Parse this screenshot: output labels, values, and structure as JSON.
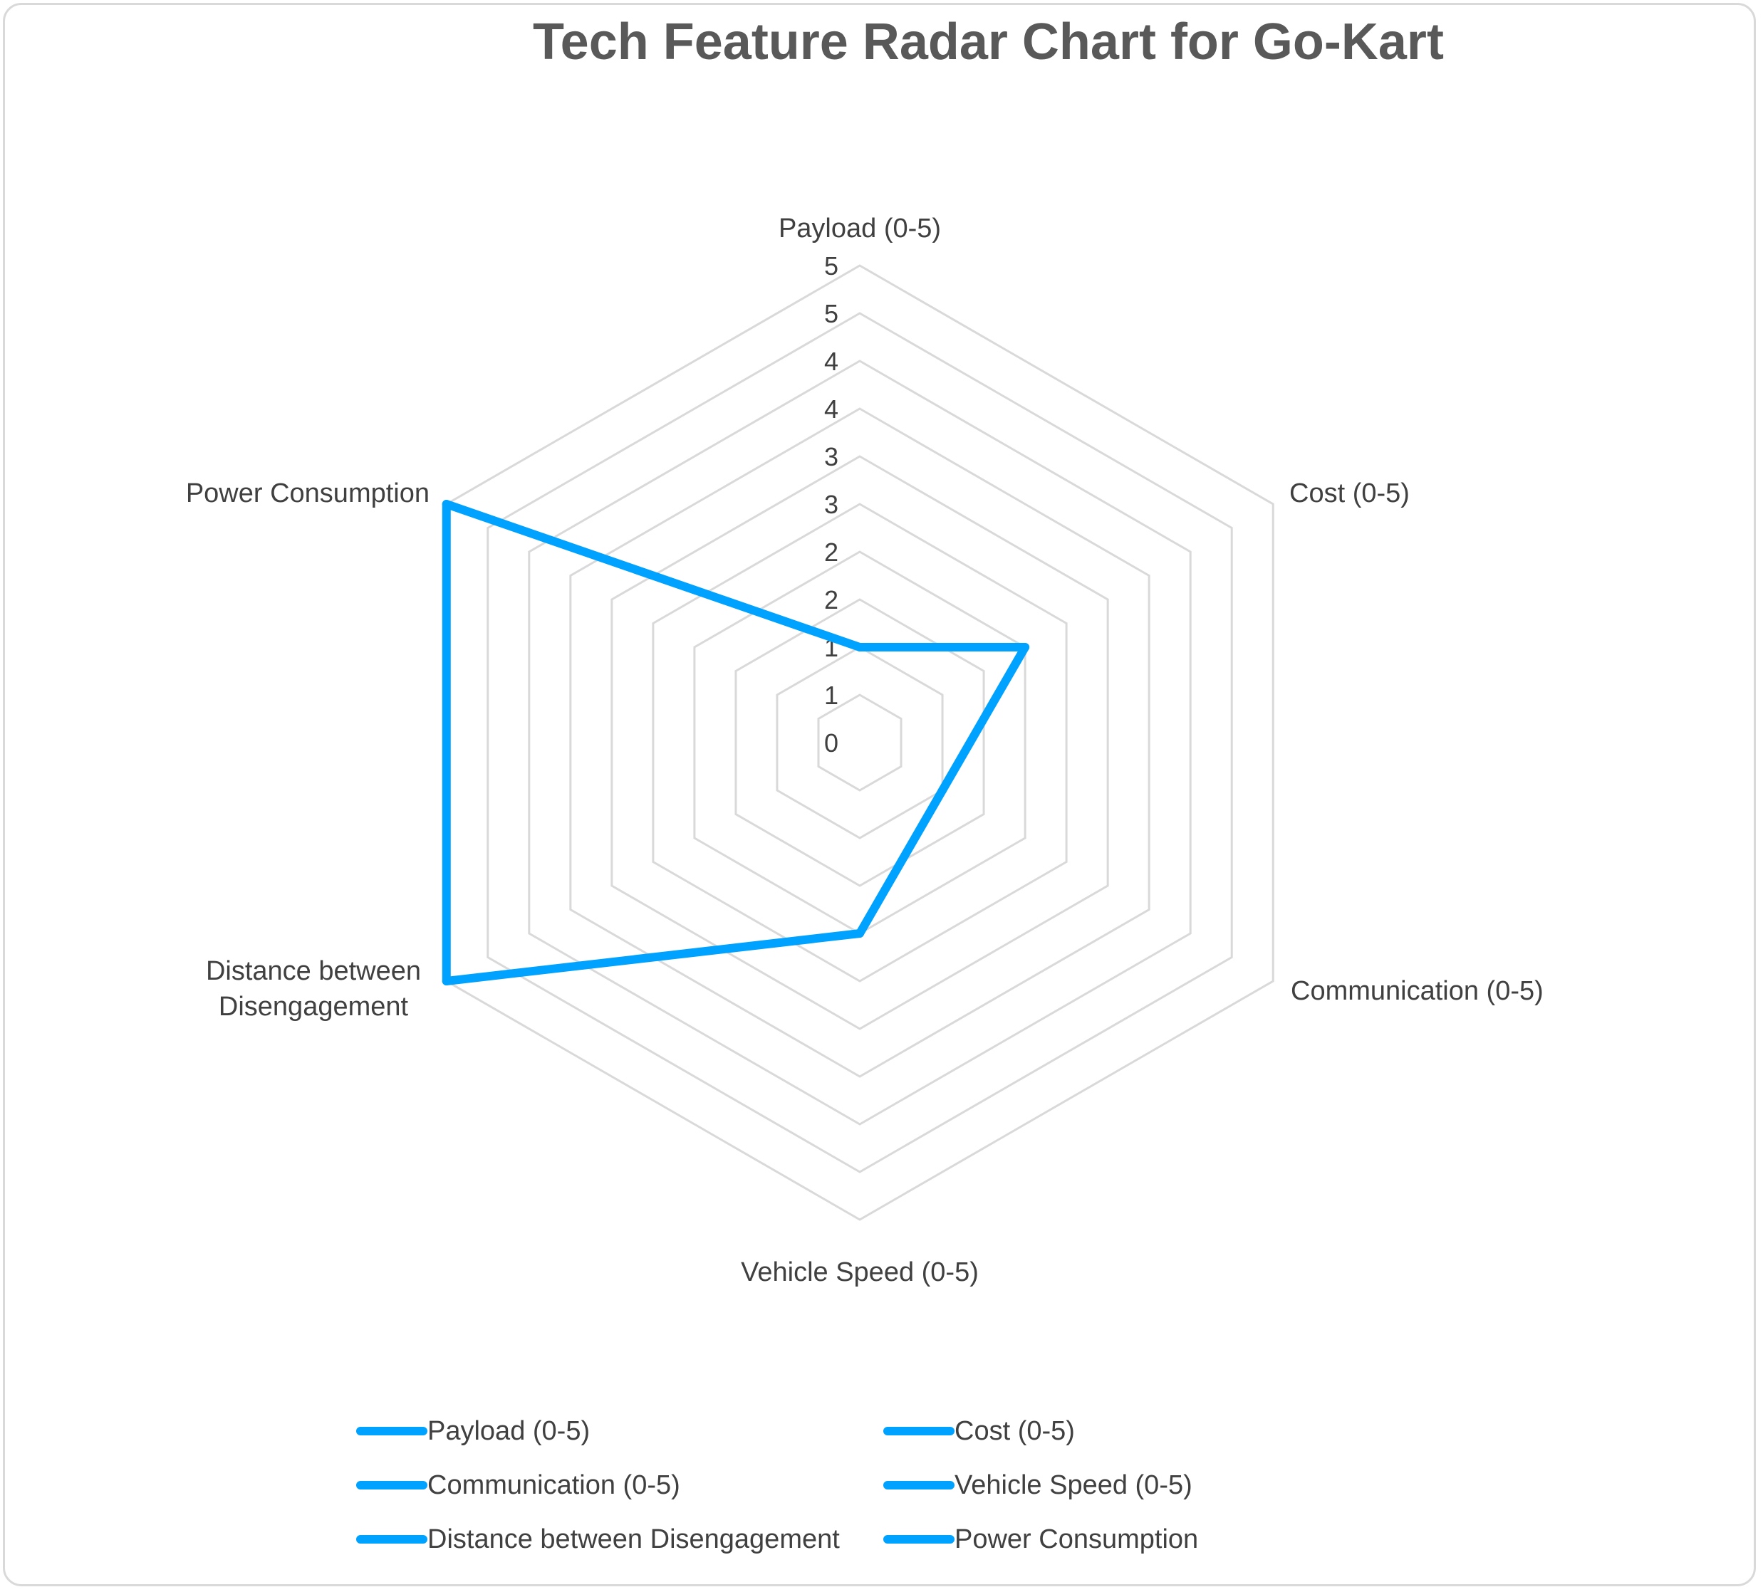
{
  "chart_data": {
    "type": "radar",
    "title": "Tech Feature Radar Chart for Go-Kart",
    "axes": [
      "Payload (0-5)",
      "Cost (0-5)",
      "Communication (0-5)",
      "Vehicle Speed (0-5)",
      "Distance between Disengagement",
      "Power Consumption"
    ],
    "axis_labels_wrapped": [
      [
        "Payload (0-5)"
      ],
      [
        "Cost (0-5)"
      ],
      [
        "Communication (0-5)"
      ],
      [
        "Vehicle Speed (0-5)"
      ],
      [
        "Distance between",
        "Disengagement"
      ],
      [
        "Power Consumption"
      ]
    ],
    "radial_ticks": [
      "0",
      "1",
      "1",
      "2",
      "2",
      "3",
      "3",
      "4",
      "4",
      "5",
      "5"
    ],
    "range": [
      0,
      5
    ],
    "values": [
      1,
      2,
      1,
      2,
      5,
      5
    ],
    "color": "#00a2ff",
    "grid_color": "#d9d9d9",
    "legend_position": "bottom",
    "legend": [
      "Payload (0-5)",
      "Cost (0-5)",
      "Communication (0-5)",
      "Vehicle Speed (0-5)",
      "Distance between Disengagement",
      "Power Consumption"
    ]
  }
}
